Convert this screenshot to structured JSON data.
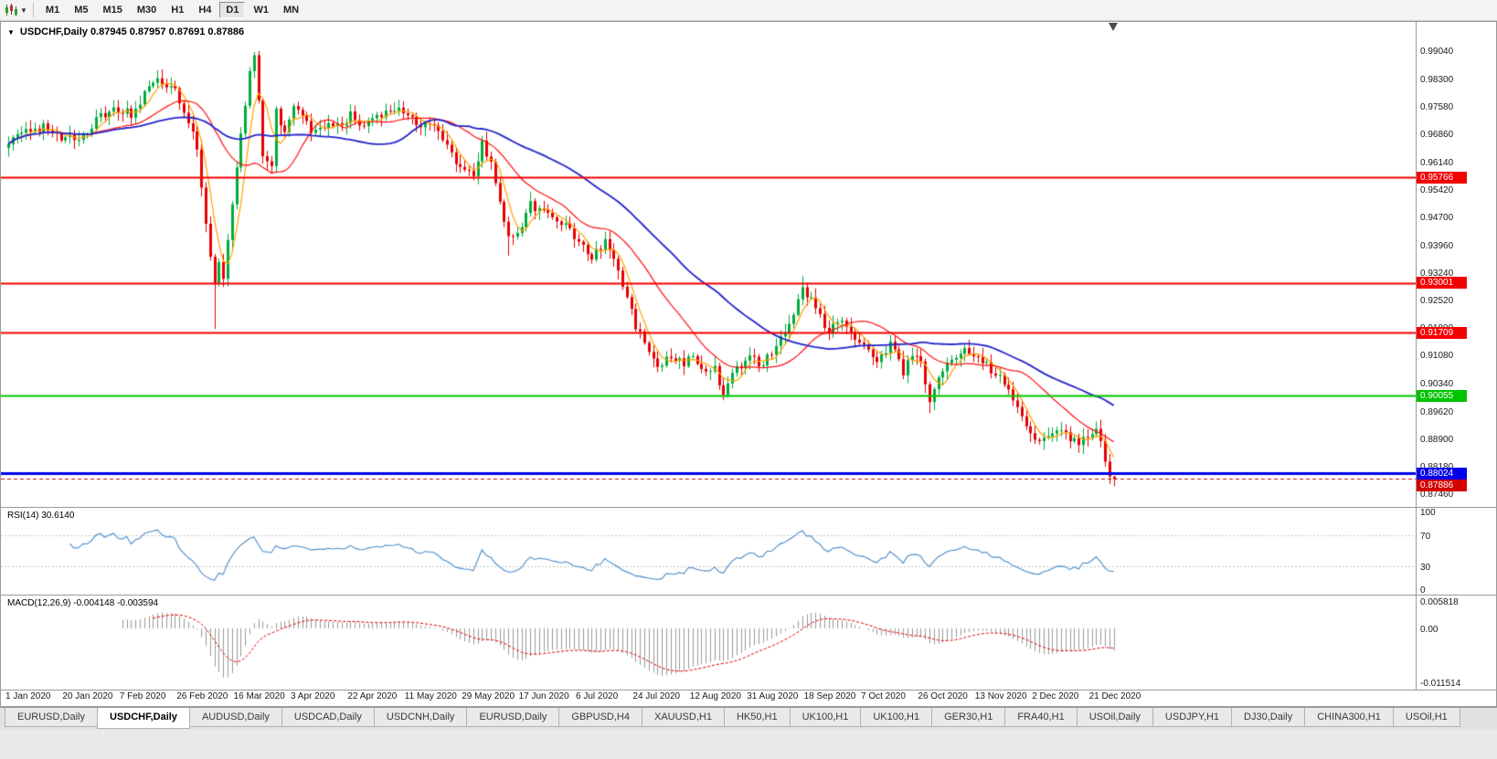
{
  "toolbar": {
    "timeframes": [
      "M1",
      "M5",
      "M15",
      "M30",
      "H1",
      "H4",
      "D1",
      "W1",
      "MN"
    ],
    "active_timeframe": "D1"
  },
  "chart": {
    "title": "USDCHF,Daily 0.87945 0.87957 0.87691 0.87886",
    "price_axis_labels": [
      "0.99040",
      "0.98300",
      "0.97580",
      "0.96860",
      "0.96140",
      "0.95420",
      "0.94700",
      "0.93960",
      "0.93240",
      "0.92520",
      "0.91800",
      "0.91080",
      "0.90340",
      "0.89620",
      "0.88900",
      "0.88180",
      "0.87460"
    ],
    "horizontal_lines": [
      {
        "price": 0.95766,
        "label": "0.95766",
        "color": "#f40000",
        "line_width": 2
      },
      {
        "price": 0.93001,
        "label": "0.93001",
        "color": "#f40000",
        "line_width": 2
      },
      {
        "price": 0.91709,
        "label": "0.91709",
        "color": "#f40000",
        "line_width": 2
      },
      {
        "price": 0.90055,
        "label": "0.90055",
        "color": "#00c400",
        "line_width": 2
      },
      {
        "price": 0.88024,
        "label": "0.88024",
        "color": "#0000ee",
        "line_width": 3
      }
    ],
    "bid_price": {
      "value": 0.87886,
      "label": "0.87886",
      "color": "#d40000"
    },
    "date_axis_labels": [
      "1 Jan 2020",
      "20 Jan 2020",
      "7 Feb 2020",
      "26 Feb 2020",
      "16 Mar 2020",
      "3 Apr 2020",
      "22 Apr 2020",
      "11 May 2020",
      "29 May 2020",
      "17 Jun 2020",
      "6 Jul 2020",
      "24 Jul 2020",
      "12 Aug 2020",
      "31 Aug 2020",
      "18 Sep 2020",
      "7 Oct 2020",
      "26 Oct 2020",
      "13 Nov 2020",
      "2 Dec 2020",
      "21 Dec 2020"
    ]
  },
  "rsi_panel": {
    "label": "RSI(14) 30.6140",
    "axis_labels": [
      {
        "value": 100,
        "label": "100"
      },
      {
        "value": 70,
        "label": "70"
      },
      {
        "value": 30,
        "label": "30"
      },
      {
        "value": 0,
        "label": "0"
      }
    ],
    "level_lines": [
      70,
      30
    ],
    "line_color": "#4a8bc8"
  },
  "macd_panel": {
    "label": "MACD(12,26,9) -0.004148 -0.003594",
    "axis_labels": [
      {
        "value": 0.005818,
        "label": "0.005818"
      },
      {
        "value": 0,
        "label": "0.00"
      },
      {
        "value": -0.011514,
        "label": "-0.011514"
      }
    ],
    "histogram_color": "#999999",
    "signal_color": "#e00000"
  },
  "tabs": {
    "active_index": 1,
    "items": [
      "EURUSD,Daily",
      "USDCHF,Daily",
      "AUDUSD,Daily",
      "USDCAD,Daily",
      "USDCNH,Daily",
      "EURUSD,Daily",
      "GBPUSD,H4",
      "XAUUSD,H1",
      "HK50,H1",
      "UK100,H1",
      "UK100,H1",
      "GER30,H1",
      "FRA40,H1",
      "USOil,Daily",
      "USDJPY,H1",
      "DJ30,Daily",
      "CHINA300,H1",
      "USOil,H1"
    ]
  },
  "chart_data": {
    "type": "candlestick",
    "symbol": "USDCHF",
    "timeframe": "Daily",
    "x_range": [
      "1 Jan 2020",
      "31 Dec 2020"
    ],
    "ylim": [
      0.8715,
      0.9983
    ],
    "bar_count": 253,
    "bars_per_date_label": 13,
    "up_color": "#00ab3c",
    "down_color": "#e60000",
    "close_anchors": [
      [
        0,
        0.967
      ],
      [
        3,
        0.9705
      ],
      [
        5,
        0.9685
      ],
      [
        8,
        0.9715
      ],
      [
        11,
        0.969
      ],
      [
        13,
        0.968
      ],
      [
        16,
        0.9668
      ],
      [
        19,
        0.9712
      ],
      [
        22,
        0.9745
      ],
      [
        25,
        0.9752
      ],
      [
        28,
        0.9742
      ],
      [
        31,
        0.979
      ],
      [
        34,
        0.9833
      ],
      [
        37,
        0.9818
      ],
      [
        39,
        0.978
      ],
      [
        41,
        0.9718
      ],
      [
        43,
        0.9655
      ],
      [
        44,
        0.956
      ],
      [
        45,
        0.946
      ],
      [
        46,
        0.936
      ],
      [
        47,
        0.9295
      ],
      [
        48,
        0.935
      ],
      [
        49,
        0.932
      ],
      [
        51,
        0.95
      ],
      [
        53,
        0.968
      ],
      [
        55,
        0.986
      ],
      [
        56,
        0.9898
      ],
      [
        57,
        0.979
      ],
      [
        58,
        0.964
      ],
      [
        60,
        0.96
      ],
      [
        61,
        0.975
      ],
      [
        63,
        0.9692
      ],
      [
        65,
        0.9758
      ],
      [
        67,
        0.9725
      ],
      [
        70,
        0.9692
      ],
      [
        73,
        0.972
      ],
      [
        76,
        0.97
      ],
      [
        78,
        0.9738
      ],
      [
        81,
        0.9704
      ],
      [
        84,
        0.9732
      ],
      [
        87,
        0.9762
      ],
      [
        89,
        0.9748
      ],
      [
        91,
        0.9738
      ],
      [
        94,
        0.9702
      ],
      [
        97,
        0.9722
      ],
      [
        100,
        0.9652
      ],
      [
        102,
        0.9618
      ],
      [
        104,
        0.9602
      ],
      [
        106,
        0.9582
      ],
      [
        108,
        0.9665
      ],
      [
        110,
        0.9622
      ],
      [
        112,
        0.952
      ],
      [
        114,
        0.9415
      ],
      [
        117,
        0.9452
      ],
      [
        119,
        0.9512
      ],
      [
        122,
        0.9478
      ],
      [
        125,
        0.9462
      ],
      [
        128,
        0.9438
      ],
      [
        130,
        0.9406
      ],
      [
        133,
        0.9374
      ],
      [
        136,
        0.941
      ],
      [
        139,
        0.9332
      ],
      [
        141,
        0.9258
      ],
      [
        143,
        0.9192
      ],
      [
        145,
        0.9152
      ],
      [
        148,
        0.908
      ],
      [
        151,
        0.9112
      ],
      [
        154,
        0.909
      ],
      [
        156,
        0.9122
      ],
      [
        159,
        0.906
      ],
      [
        161,
        0.908
      ],
      [
        163,
        0.9006
      ],
      [
        165,
        0.9068
      ],
      [
        169,
        0.9108
      ],
      [
        172,
        0.9084
      ],
      [
        175,
        0.914
      ],
      [
        178,
        0.9198
      ],
      [
        181,
        0.9292
      ],
      [
        184,
        0.9232
      ],
      [
        187,
        0.9172
      ],
      [
        190,
        0.9212
      ],
      [
        193,
        0.9164
      ],
      [
        195,
        0.9142
      ],
      [
        198,
        0.91
      ],
      [
        201,
        0.914
      ],
      [
        204,
        0.907
      ],
      [
        206,
        0.9118
      ],
      [
        208,
        0.909
      ],
      [
        210,
        0.8994
      ],
      [
        212,
        0.9058
      ],
      [
        215,
        0.9098
      ],
      [
        218,
        0.9122
      ],
      [
        221,
        0.91
      ],
      [
        224,
        0.9074
      ],
      [
        227,
        0.904
      ],
      [
        229,
        0.8996
      ],
      [
        231,
        0.8954
      ],
      [
        234,
        0.8902
      ],
      [
        237,
        0.8894
      ],
      [
        240,
        0.8926
      ],
      [
        242,
        0.8896
      ],
      [
        244,
        0.8882
      ],
      [
        246,
        0.8906
      ],
      [
        248,
        0.8916
      ],
      [
        249,
        0.8876
      ],
      [
        250,
        0.8838
      ],
      [
        251,
        0.87945
      ],
      [
        252,
        0.87886
      ]
    ],
    "wick_overrides": {
      "47": {
        "low": 0.918
      },
      "56": {
        "high": 0.9904
      },
      "114": {
        "low": 0.9372
      },
      "163": {
        "low": 0.8994
      },
      "181": {
        "high": 0.9318
      },
      "210": {
        "low": 0.896
      }
    },
    "last_bar": {
      "open": 0.87945,
      "high": 0.87957,
      "low": 0.87691,
      "close": 0.87886
    },
    "moving_averages": [
      {
        "type": "sma",
        "period": 5,
        "color": "#ffa200",
        "width": 1.2
      },
      {
        "type": "sma",
        "period": 20,
        "color": "#ff1010",
        "width": 1.2
      },
      {
        "type": "sma",
        "period": 45,
        "color": "#2424cc",
        "width": 1.8
      }
    ],
    "indicators": {
      "rsi": {
        "period": 14,
        "current": 30.614,
        "range": [
          0,
          100
        ],
        "levels": [
          30,
          70
        ]
      },
      "macd": {
        "fast": 12,
        "slow": 26,
        "signal": 9,
        "current_macd": -0.004148,
        "current_signal": -0.003594,
        "axis_max": 0.005818,
        "axis_min": -0.011514
      }
    }
  }
}
